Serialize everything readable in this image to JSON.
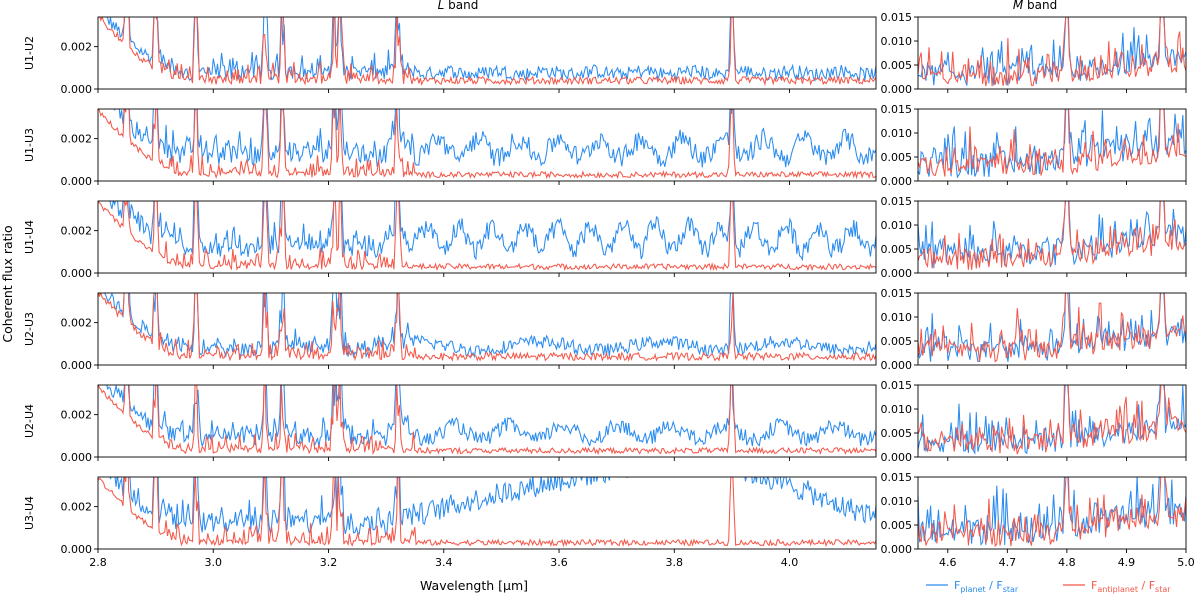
{
  "chart_data": {
    "type": "line",
    "ylabel": "Coherent flux ratio",
    "xlabel": "Wavelength [μm]",
    "panels": {
      "L": {
        "title_italic": "L",
        "title_rest": " band",
        "xlim": [
          2.8,
          4.15
        ],
        "ylim": [
          0,
          0.0034
        ],
        "xticks": [
          2.8,
          3.0,
          3.2,
          3.4,
          3.6,
          3.8,
          4.0
        ],
        "xtick_labels": [
          "2.8",
          "3.0",
          "3.2",
          "3.4",
          "3.6",
          "3.8",
          "4.0"
        ],
        "yticks": [
          0,
          0.002
        ],
        "ytick_labels": [
          "0.000",
          "0.002"
        ]
      },
      "M": {
        "title_italic": "M",
        "title_rest": " band",
        "xlim": [
          4.55,
          5.0
        ],
        "ylim": [
          0,
          0.015
        ],
        "xticks": [
          4.6,
          4.7,
          4.8,
          4.9,
          5.0
        ],
        "xtick_labels": [
          "4.6",
          "4.7",
          "4.8",
          "4.9",
          "5.0"
        ],
        "yticks": [
          0,
          0.005,
          0.01,
          0.015
        ],
        "ytick_labels": [
          "0.000",
          "0.005",
          "0.010",
          "0.015"
        ]
      }
    },
    "baselines": [
      {
        "name": "U1-U2",
        "L_planet_mean": 0.0007,
        "L_antiplanet_mean": 0.0004,
        "L_modulation": 0.00015,
        "L_periods": 10,
        "M_planet_mean": 0.004,
        "M_antiplanet_mean": 0.003
      },
      {
        "name": "U1-U3",
        "L_planet_mean": 0.0011,
        "L_antiplanet_mean": 0.0003,
        "L_modulation": 0.0009,
        "L_periods": 12,
        "M_planet_mean": 0.005,
        "M_antiplanet_mean": 0.004
      },
      {
        "name": "U1-U4",
        "L_planet_mean": 0.0011,
        "L_antiplanet_mean": 0.0003,
        "L_modulation": 0.0011,
        "L_periods": 15,
        "M_planet_mean": 0.005,
        "M_antiplanet_mean": 0.004
      },
      {
        "name": "U2-U3",
        "L_planet_mean": 0.0007,
        "L_antiplanet_mean": 0.0004,
        "L_modulation": 0.0004,
        "L_periods": 4,
        "M_planet_mean": 0.004,
        "M_antiplanet_mean": 0.004
      },
      {
        "name": "U2-U4",
        "L_planet_mean": 0.0008,
        "L_antiplanet_mean": 0.0003,
        "L_modulation": 0.0007,
        "L_periods": 9,
        "M_planet_mean": 0.004,
        "M_antiplanet_mean": 0.004
      },
      {
        "name": "U3-U4",
        "L_planet_mean": 0.0012,
        "L_antiplanet_mean": 0.0003,
        "L_modulation": 0.0022,
        "L_periods": 1,
        "M_planet_mean": 0.005,
        "M_antiplanet_mean": 0.004
      }
    ],
    "telluric_spikes_um": [
      2.85,
      2.9,
      2.97,
      3.09,
      3.12,
      3.21,
      3.22,
      3.32,
      3.9,
      4.8,
      4.96
    ],
    "series": [
      {
        "name": "planet",
        "color": "#2b8cef",
        "label_main": "F",
        "label_sub": "planet",
        "label_mid": " / F",
        "label_sub2": "star"
      },
      {
        "name": "antiplanet",
        "color": "#f4584a",
        "label_main": "F",
        "label_sub": "antiplanet",
        "label_mid": " / F",
        "label_sub2": "star"
      }
    ]
  }
}
